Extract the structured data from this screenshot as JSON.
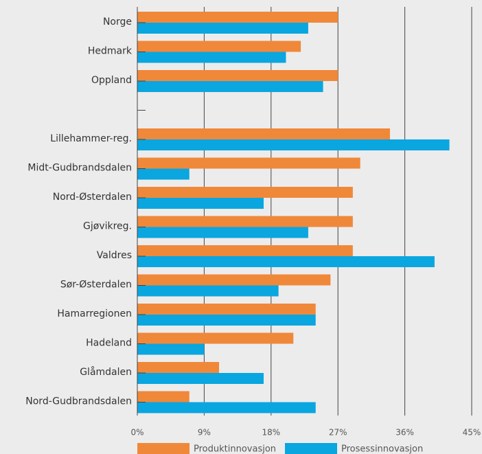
{
  "chart_data": {
    "type": "bar",
    "orientation": "horizontal",
    "categories": [
      "Norge",
      "Hedmark",
      "Oppland",
      null,
      "Lillehammer-reg.",
      "Midt-Gudbrandsdalen",
      "Nord-Østerdalen",
      "Gjøvikreg.",
      "Valdres",
      "Sør-Østerdalen",
      "Hamarregionen",
      "Hadeland",
      "Glåmdalen",
      "Nord-Gudbrandsdalen"
    ],
    "series": [
      {
        "name": "Produktinnovasjon",
        "color": "#f0883a",
        "values": [
          27,
          22,
          27,
          null,
          34,
          30,
          29,
          29,
          29,
          26,
          24,
          21,
          11,
          7
        ]
      },
      {
        "name": "Prosessinnovasjon",
        "color": "#0aa6e0",
        "values": [
          23,
          20,
          25,
          null,
          42,
          7,
          17,
          23,
          40,
          19,
          24,
          9,
          17,
          24
        ]
      }
    ],
    "xlim": [
      0,
      45
    ],
    "xticks": [
      {
        "value": 0,
        "label": "0%"
      },
      {
        "value": 9,
        "label": "9%"
      },
      {
        "value": 18,
        "label": "18%"
      },
      {
        "value": 27,
        "label": "27%"
      },
      {
        "value": 36,
        "label": "36%"
      },
      {
        "value": 45,
        "label": "45%"
      }
    ],
    "grid": true,
    "legend": "bottom"
  }
}
